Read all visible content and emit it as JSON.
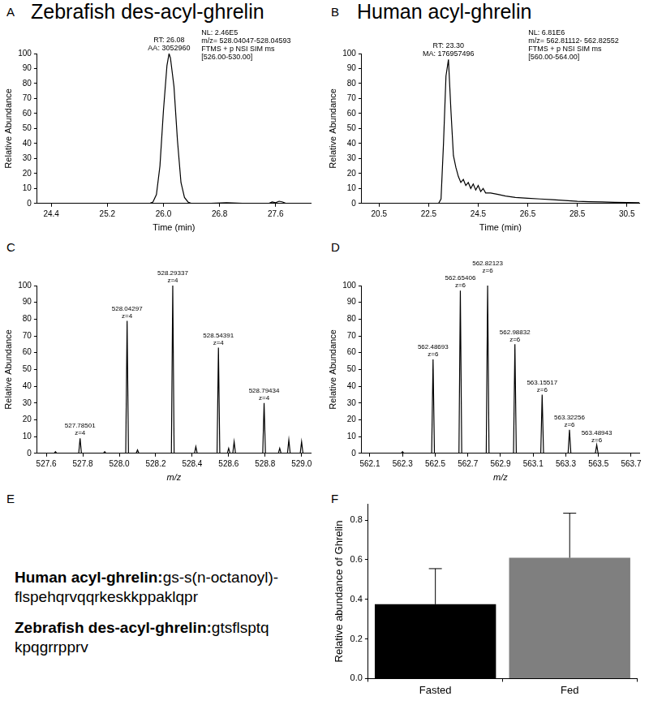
{
  "chart_data": [
    {
      "panel": "A",
      "type": "line",
      "title": "Zebrafish des-acyl-ghrelin",
      "x_label": "Time (min)",
      "y_label": "Relative Abundance",
      "color": "#000000",
      "grid": false,
      "x": [
        24.2,
        25.0,
        25.7,
        25.8,
        25.85,
        25.9,
        25.95,
        26.0,
        26.05,
        26.08,
        26.1,
        26.15,
        26.2,
        26.25,
        26.3,
        26.35,
        26.4,
        26.6,
        26.9,
        27.2,
        27.5,
        27.55,
        27.6,
        27.65,
        27.7,
        27.75,
        28.1
      ],
      "values": [
        0,
        0,
        0,
        0,
        1,
        6,
        25,
        62,
        92,
        100,
        97,
        78,
        42,
        14,
        4,
        1,
        0,
        0,
        0.5,
        0,
        0,
        1,
        0.5,
        1.5,
        1,
        0,
        0
      ],
      "xlim": [
        24.2,
        28.1
      ],
      "xticks": [
        24.4,
        25.2,
        {
          "value": 26,
          "label": "26.0"
        },
        26.8,
        27.6
      ],
      "ylim": [
        0,
        100
      ],
      "yticks": [
        0,
        10,
        20,
        30,
        40,
        50,
        60,
        70,
        80,
        90,
        100
      ],
      "annotations": [
        {
          "x": 26.08,
          "y": 100,
          "lines": [
            "RT: 26.08",
            "AA: 3052960"
          ]
        }
      ],
      "info": [
        "NL: 2.46E5",
        "m/z= 528.04047-528.04593",
        "FTMS + p NSI SIM ms",
        "[526.00-530.00]"
      ]
    },
    {
      "panel": "B",
      "type": "line",
      "title": "Human acyl-ghrelin",
      "x_label": "Time (min)",
      "y_label": "Relative Abundance",
      "color": "#000000",
      "grid": false,
      "x": [
        19.8,
        21.0,
        22.5,
        22.9,
        23.0,
        23.1,
        23.2,
        23.3,
        23.4,
        23.5,
        23.6,
        23.7,
        23.8,
        23.9,
        24.0,
        24.1,
        24.2,
        24.3,
        24.4,
        24.5,
        24.6,
        24.7,
        24.8,
        25.0,
        25.3,
        25.6,
        26.0,
        26.5,
        27.0,
        27.5,
        28.0,
        28.5,
        29.0,
        29.5,
        30.0,
        30.5,
        31.0
      ],
      "values": [
        0,
        0,
        0,
        0,
        3,
        40,
        85,
        96,
        62,
        32,
        24,
        18,
        14,
        16,
        12,
        14,
        10,
        13,
        9,
        12,
        8,
        10,
        7,
        7,
        6,
        5,
        4,
        3.5,
        3,
        2.5,
        2,
        1.5,
        1.2,
        1,
        0.8,
        0.6,
        0.5
      ],
      "xlim": [
        19.8,
        31.0
      ],
      "xticks": [
        20.5,
        22.5,
        24.5,
        26.5,
        28.5,
        30.5
      ],
      "ylim": [
        0,
        100
      ],
      "yticks": [
        0,
        10,
        20,
        30,
        40,
        50,
        60,
        70,
        80,
        90,
        100
      ],
      "annotations": [
        {
          "x": 23.3,
          "y": 96,
          "lines": [
            "RT: 23.30",
            "MA: 176957496"
          ]
        }
      ],
      "info": [
        "NL: 6.81E6",
        "m/z= 562.81112- 562.82552",
        "FTMS + p NSI SIM ms",
        "[560.00-564.00]"
      ]
    },
    {
      "panel": "C",
      "type": "spectrum",
      "x_label": "m/z",
      "y_label": "Relative Abundance",
      "color": "#000000",
      "grid": false,
      "x": [
        527.65,
        527.78501,
        527.92,
        528.04297,
        528.1,
        528.29337,
        528.42,
        528.54391,
        528.6,
        528.63,
        528.79434,
        528.88,
        528.93,
        529.0
      ],
      "values": [
        1,
        9,
        1,
        79,
        2,
        100,
        4,
        63,
        3,
        7,
        30,
        3,
        8,
        7
      ],
      "xlim": [
        527.55,
        529.05
      ],
      "xticks": [
        527.6,
        527.8,
        {
          "value": 528,
          "label": "528.0"
        },
        528.2,
        528.4,
        528.6,
        528.8,
        {
          "value": 529,
          "label": "529.0"
        }
      ],
      "ylim": [
        0,
        100
      ],
      "yticks": [
        0,
        10,
        20,
        30,
        40,
        50,
        60,
        70,
        80,
        90,
        100
      ],
      "annotations": [
        {
          "x": 527.78501,
          "y": 9,
          "lines": [
            "527.78501",
            "z=4"
          ]
        },
        {
          "x": 528.04297,
          "y": 79,
          "lines": [
            "528.04297",
            "z=4"
          ]
        },
        {
          "x": 528.29337,
          "y": 100,
          "lines": [
            "528.29337",
            "z=4"
          ]
        },
        {
          "x": 528.54391,
          "y": 63,
          "lines": [
            "528.54391",
            "z=4"
          ]
        },
        {
          "x": 528.79434,
          "y": 30,
          "lines": [
            "528.79434",
            "z=4"
          ]
        }
      ]
    },
    {
      "panel": "D",
      "type": "spectrum",
      "x_label": "m/z",
      "y_label": "Relative Abundance",
      "color": "#000000",
      "grid": false,
      "x": [
        562.3,
        562.48693,
        562.65406,
        562.82123,
        562.98832,
        563.15517,
        563.32256,
        563.48943
      ],
      "values": [
        1,
        56,
        97,
        100,
        65,
        35,
        14,
        5
      ],
      "xlim": [
        562.05,
        563.75
      ],
      "xticks": [
        562.1,
        562.3,
        562.5,
        562.7,
        562.9,
        563.1,
        563.3,
        563.5,
        563.7
      ],
      "ylim": [
        0,
        100
      ],
      "yticks": [
        0,
        10,
        20,
        30,
        40,
        50,
        60,
        70,
        80,
        90,
        100
      ],
      "annotations": [
        {
          "x": 562.48693,
          "y": 56,
          "lines": [
            "562.48693",
            "z=6"
          ]
        },
        {
          "x": 562.65406,
          "y": 97,
          "lines": [
            "562.65406",
            "z=6"
          ]
        },
        {
          "x": 562.82123,
          "y": 100,
          "lines": [
            "562.82123",
            "z=6"
          ]
        },
        {
          "x": 562.98832,
          "y": 65,
          "lines": [
            "562.98832",
            "z=6"
          ]
        },
        {
          "x": 563.15517,
          "y": 35,
          "lines": [
            "563.15517",
            "z=6"
          ]
        },
        {
          "x": 563.32256,
          "y": 14,
          "lines": [
            "563.32256",
            "z=6"
          ]
        },
        {
          "x": 563.48943,
          "y": 5,
          "lines": [
            "563.48943",
            "z=6"
          ]
        }
      ]
    },
    {
      "panel": "F",
      "type": "bar",
      "y_label": "Relative abundance of Ghrelin",
      "grid": false,
      "categories": [
        "Fasted",
        "Fed"
      ],
      "values": [
        0.375,
        0.61
      ],
      "errors": [
        0.18,
        0.225
      ],
      "colors": [
        "#000000",
        "#7f7f7f"
      ],
      "ylim": [
        0,
        0.88
      ],
      "yticks": [
        {
          "value": 0,
          "label": "0.0"
        },
        {
          "value": 0.2,
          "label": "0.2"
        },
        {
          "value": 0.4,
          "label": "0.4"
        },
        {
          "value": 0.6,
          "label": "0.6"
        },
        {
          "value": 0.8,
          "label": "0.8"
        }
      ]
    }
  ],
  "panel_e": {
    "panel": "E",
    "entries": [
      {
        "label": "Human acyl-ghrelin:",
        "lines": [
          "gs-s(n-octanoyl)-",
          "flspehqrvqqrkeskkppaklqpr"
        ]
      },
      {
        "label": "Zebrafish des-acyl-ghrelin:",
        "lines": [
          "gtsflsptq",
          "kpqgrrpprv"
        ]
      }
    ]
  }
}
